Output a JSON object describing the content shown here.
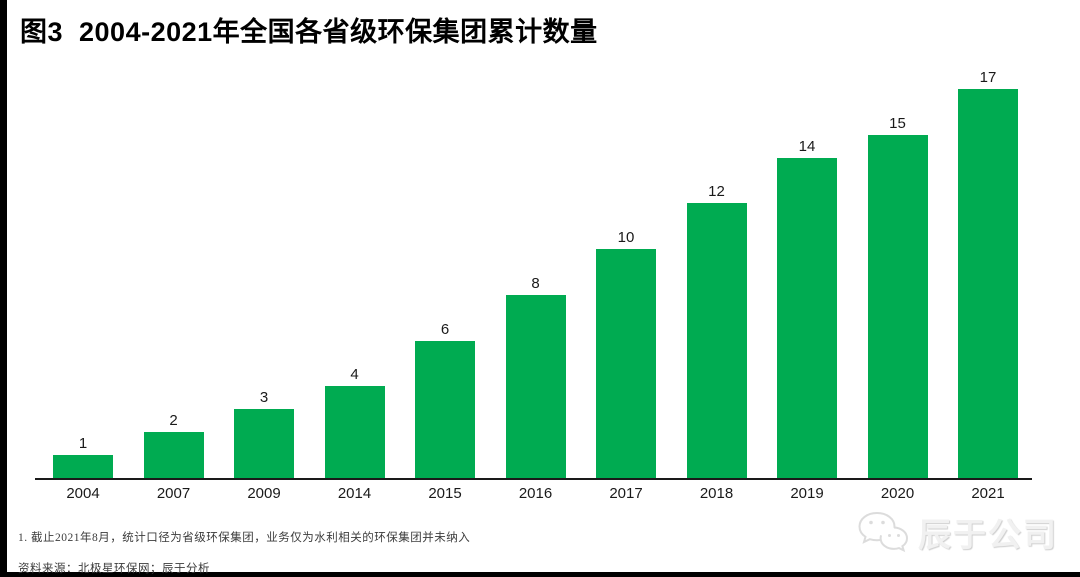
{
  "title": "图3  2004-2021年全国各省级环保集团累计数量",
  "chart_data": {
    "type": "bar",
    "title": "2004-2021年全国各省级环保集团累计数量",
    "categories": [
      "2004",
      "2007",
      "2009",
      "2014",
      "2015",
      "2016",
      "2017",
      "2018",
      "2019",
      "2020",
      "2021"
    ],
    "values": [
      1,
      2,
      3,
      4,
      6,
      8,
      10,
      12,
      14,
      15,
      17
    ],
    "xlabel": "",
    "ylabel": "",
    "ylim": [
      0,
      17
    ],
    "grid": false,
    "legend": false,
    "value_labels_shown": true,
    "bar_color": "#00AB51"
  },
  "footnotes": {
    "note": "1. 截止2021年8月，统计口径为省级环保集团，业务仅为水利相关的环保集团并未纳入",
    "source": "资料来源：北极星环保网；辰于分析"
  },
  "watermark": {
    "icon": "wechat-icon",
    "text": "辰于公司",
    "color": "#f1f1f1"
  },
  "colors": {
    "bar_green": "#00AB51",
    "axis_black": "#1a1a1a",
    "frame_black": "#000000"
  }
}
